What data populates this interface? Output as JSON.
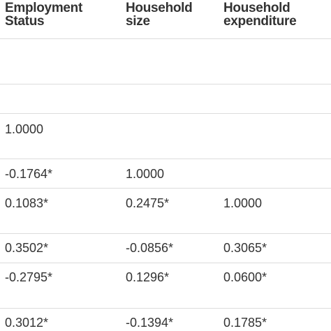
{
  "headers": [
    [
      "Employment",
      "Status"
    ],
    [
      "Household",
      "size"
    ],
    [
      "Household",
      "expenditure"
    ]
  ],
  "rows": [
    [
      "",
      "",
      ""
    ],
    [
      "",
      "",
      ""
    ],
    [
      "1.0000",
      "",
      ""
    ],
    [
      "-0.1764*",
      "1.0000",
      ""
    ],
    [
      "0.1083*",
      "0.2475*",
      "1.0000"
    ],
    [
      "0.3502*",
      "-0.0856*",
      "0.3065*"
    ],
    [
      "-0.2795*",
      "0.1296*",
      "0.0600*"
    ],
    [
      "0.3012*",
      "-0.1394*",
      "0.1785*"
    ]
  ]
}
